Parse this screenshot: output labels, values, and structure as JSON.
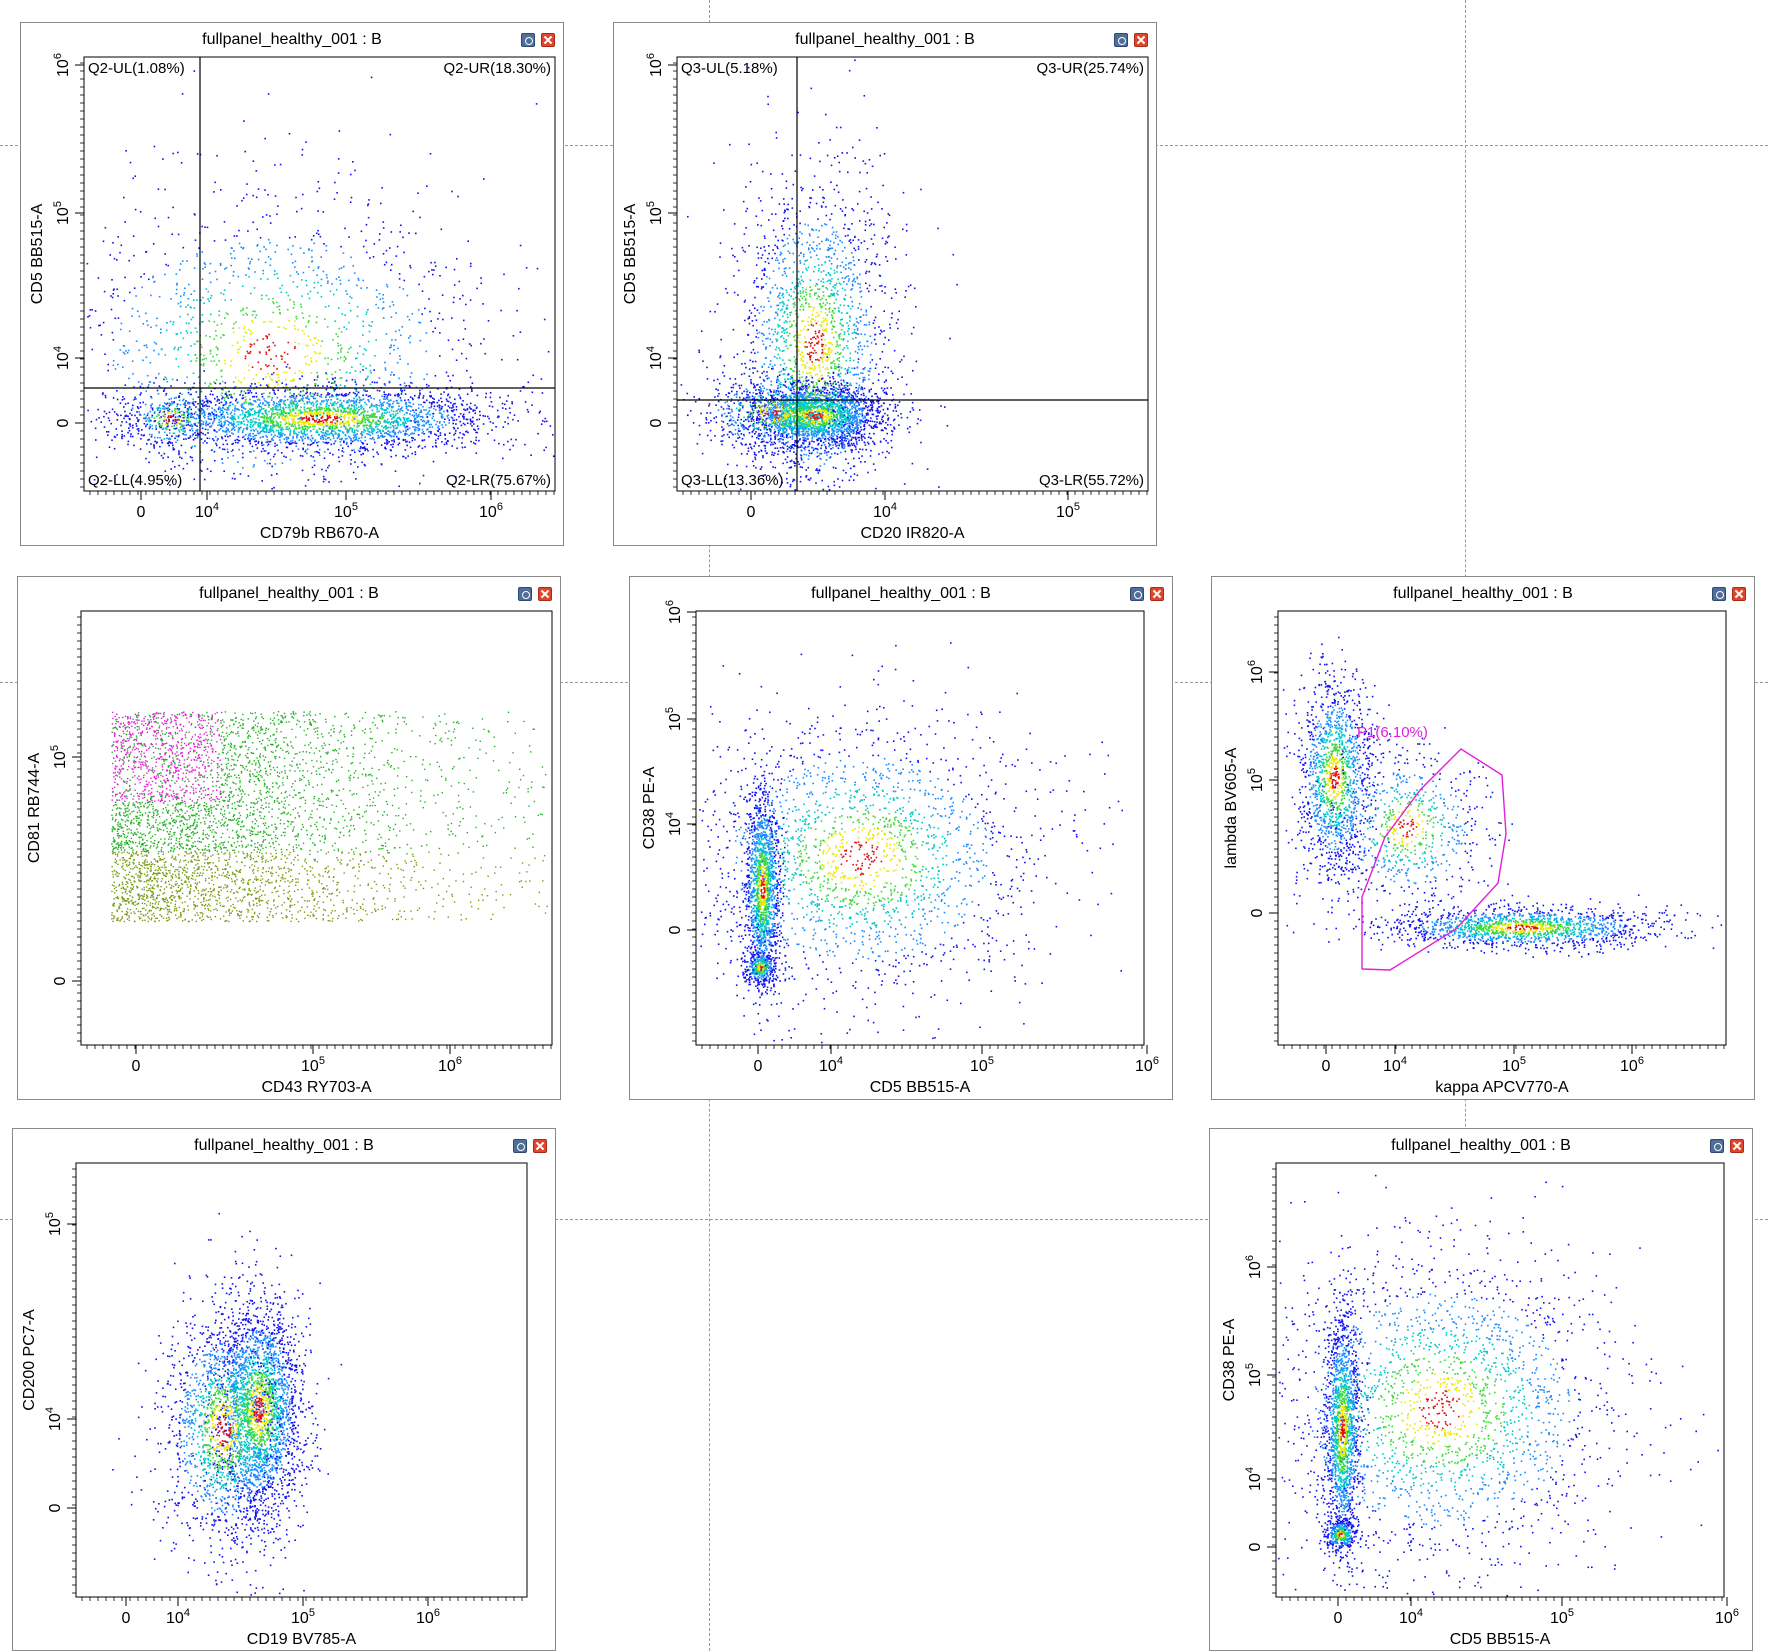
{
  "panels": [
    {
      "id": "p1",
      "title": "fullpanel_healthy_001 : B",
      "xlabel": "CD79b RB670-A",
      "ylabel": "CD5 BB515-A",
      "xticks": [
        {
          "label": "0",
          "kind": "zero"
        },
        {
          "label": "10",
          "exp": "4"
        },
        {
          "label": "10",
          "exp": "5"
        },
        {
          "label": "10",
          "exp": "6"
        }
      ],
      "yticks": [
        {
          "label": "0",
          "kind": "zero"
        },
        {
          "label": "10",
          "exp": "4"
        },
        {
          "label": "10",
          "exp": "5"
        },
        {
          "label": "10",
          "exp": "6"
        }
      ],
      "quadrants": [
        "Q2-UL(1.08%)",
        "Q2-UR(18.30%)",
        "Q2-LL(4.95%)",
        "Q2-LR(75.67%)"
      ],
      "coloring": "density"
    },
    {
      "id": "p2",
      "title": "fullpanel_healthy_001 : B",
      "xlabel": "CD20 IR820-A",
      "ylabel": "CD5 BB515-A",
      "xticks": [
        {
          "label": "0",
          "kind": "zero"
        },
        {
          "label": "10",
          "exp": "4"
        },
        {
          "label": "10",
          "exp": "5"
        }
      ],
      "yticks": [
        {
          "label": "0",
          "kind": "zero"
        },
        {
          "label": "10",
          "exp": "4"
        },
        {
          "label": "10",
          "exp": "5"
        },
        {
          "label": "10",
          "exp": "6"
        }
      ],
      "quadrants": [
        "Q3-UL(5.18%)",
        "Q3-UR(25.74%)",
        "Q3-LL(13.36%)",
        "Q3-LR(55.72%)"
      ],
      "coloring": "density"
    },
    {
      "id": "p3",
      "title": "fullpanel_healthy_001 : B",
      "xlabel": "CD43 RY703-A",
      "ylabel": "CD81 RB744-A",
      "xticks": [
        {
          "label": "0",
          "kind": "zero"
        },
        {
          "label": "10",
          "exp": "5"
        },
        {
          "label": "10",
          "exp": "6"
        }
      ],
      "yticks": [
        {
          "label": "0",
          "kind": "zero"
        },
        {
          "label": "10",
          "exp": "5"
        }
      ],
      "coloring": "population"
    },
    {
      "id": "p4",
      "title": "fullpanel_healthy_001 : B",
      "xlabel": "CD5 BB515-A",
      "ylabel": "CD38 PE-A",
      "xticks": [
        {
          "label": "0",
          "kind": "zero"
        },
        {
          "label": "10",
          "exp": "4"
        },
        {
          "label": "10",
          "exp": "5"
        },
        {
          "label": "10",
          "exp": "6"
        }
      ],
      "yticks": [
        {
          "label": "0",
          "kind": "zero"
        },
        {
          "label": "10",
          "exp": "4"
        },
        {
          "label": "10",
          "exp": "5"
        },
        {
          "label": "10",
          "exp": "6"
        }
      ],
      "coloring": "density"
    },
    {
      "id": "p5",
      "title": "fullpanel_healthy_001 : B",
      "xlabel": "kappa APCV770-A",
      "ylabel": "lambda BV605-A",
      "xticks": [
        {
          "label": "0",
          "kind": "zero"
        },
        {
          "label": "10",
          "exp": "4"
        },
        {
          "label": "10",
          "exp": "5"
        },
        {
          "label": "10",
          "exp": "6"
        }
      ],
      "yticks": [
        {
          "label": "0",
          "kind": "zero"
        },
        {
          "label": "10",
          "exp": "5"
        },
        {
          "label": "10",
          "exp": "6"
        }
      ],
      "gate_label": "P1(6.10%)",
      "gate_color": "#e020d8",
      "coloring": "density"
    },
    {
      "id": "p6",
      "title": "fullpanel_healthy_001 : B",
      "xlabel": "CD19 BV785-A",
      "ylabel": "CD200 PC7-A",
      "xticks": [
        {
          "label": "0",
          "kind": "zero"
        },
        {
          "label": "10",
          "exp": "4"
        },
        {
          "label": "10",
          "exp": "5"
        },
        {
          "label": "10",
          "exp": "6"
        }
      ],
      "yticks": [
        {
          "label": "0",
          "kind": "zero"
        },
        {
          "label": "10",
          "exp": "4"
        },
        {
          "label": "10",
          "exp": "5"
        }
      ],
      "coloring": "density"
    },
    {
      "id": "p7",
      "title": "fullpanel_healthy_001 : B",
      "xlabel": "CD5 BB515-A",
      "ylabel": "CD38 PE-A",
      "xticks": [
        {
          "label": "0",
          "kind": "zero"
        },
        {
          "label": "10",
          "exp": "4"
        },
        {
          "label": "10",
          "exp": "5"
        },
        {
          "label": "10",
          "exp": "6"
        }
      ],
      "yticks": [
        {
          "label": "0",
          "kind": "zero"
        },
        {
          "label": "10",
          "exp": "4"
        },
        {
          "label": "10",
          "exp": "5"
        },
        {
          "label": "10",
          "exp": "6"
        }
      ],
      "coloring": "density"
    }
  ],
  "colors": {
    "density_low": "#1010f0",
    "density_mid": "#00c8c8",
    "density_high": "#e8e800",
    "density_peak": "#e01010",
    "population_green": "#22b022",
    "population_olive": "#7a9a10",
    "population_magenta": "#e020d8",
    "gate": "#e020d8",
    "axis": "#000000"
  }
}
